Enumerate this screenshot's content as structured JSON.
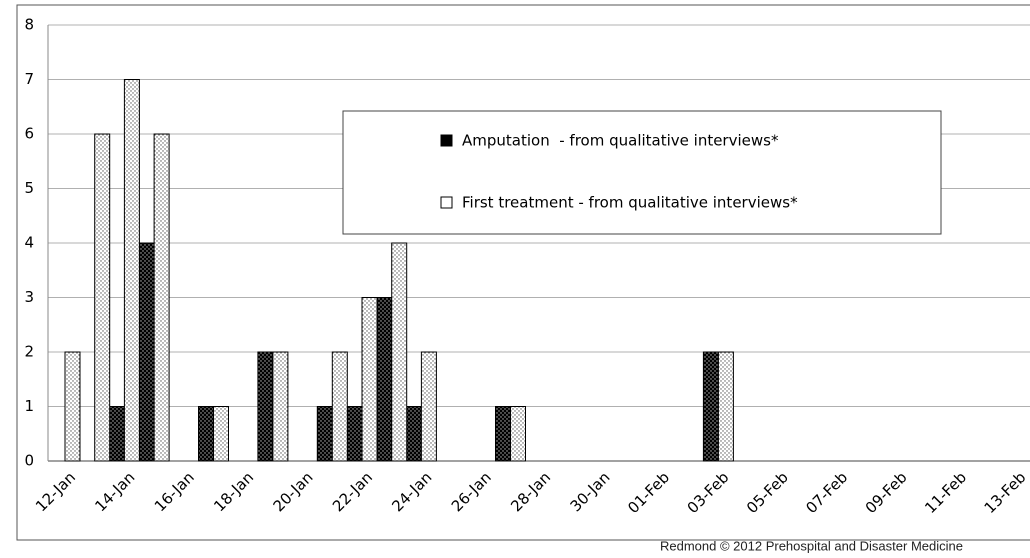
{
  "chart_data": {
    "type": "bar",
    "categories": [
      "12-Jan",
      null,
      "14-Jan",
      null,
      "16-Jan",
      null,
      "18-Jan",
      null,
      "20-Jan",
      null,
      "22-Jan",
      null,
      "24-Jan",
      null,
      "26-Jan",
      null,
      "28-Jan",
      null,
      "30-Jan",
      null,
      "01-Feb",
      null,
      "03-Feb",
      null,
      "05-Feb",
      null,
      "07-Feb",
      null,
      "09-Feb",
      null,
      "11-Feb",
      null,
      "13-Feb"
    ],
    "series": [
      {
        "name": "Amputation  - from qualitative interviews*",
        "color": "#000000",
        "values": [
          0,
          0,
          1,
          4,
          0,
          1,
          0,
          2,
          0,
          1,
          1,
          3,
          1,
          0,
          0,
          1,
          0,
          0,
          0,
          0,
          0,
          0,
          2,
          0,
          0,
          0,
          0,
          0,
          0,
          0,
          0,
          0,
          0
        ]
      },
      {
        "name": "First treatment - from qualitative interviews*",
        "color": "#ffffff",
        "values": [
          2,
          6,
          7,
          6,
          0,
          1,
          0,
          2,
          0,
          2,
          3,
          4,
          2,
          0,
          0,
          1,
          0,
          0,
          0,
          0,
          0,
          0,
          2,
          0,
          0,
          0,
          0,
          0,
          0,
          0,
          0,
          0,
          0
        ]
      }
    ],
    "ylim": [
      0,
      8
    ],
    "yticks": [
      0,
      1,
      2,
      3,
      4,
      5,
      6,
      7,
      8
    ],
    "grid": true,
    "credit": "Redmond © 2012 Prehospital and Disaster Medicine"
  }
}
